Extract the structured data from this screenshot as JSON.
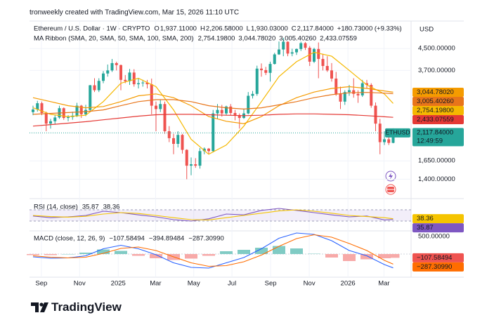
{
  "header": "tronweekly created with TradingView.com, Mar 15, 2026 11:10 UTC",
  "brand": "TradingView",
  "chart_data": [
    {
      "type": "candlestick",
      "title": "Ethereum / U.S. Dollar · 1W · CRYPTO",
      "ohlc_legend": [
        {
          "label": "O",
          "value": "1,937.11000"
        },
        {
          "label": "H",
          "value": "2,206.58000"
        },
        {
          "label": "L",
          "value": "1,930.03000"
        },
        {
          "label": "C",
          "value": "2,117.84000"
        }
      ],
      "change": "+180.73000 (+9.33%)",
      "currency": "USD",
      "symbol": "ETHUSD",
      "countdown": "12:49:59",
      "last_label": "2,117.84000",
      "up_color": "#26a69a",
      "down_color": "#ef5350",
      "log_scale": true,
      "grid": true,
      "ylim": [
        1200,
        5750
      ],
      "yticks": [
        {
          "value": 4500,
          "label": "4,500.00000"
        },
        {
          "value": 3700,
          "label": "3,700.00000"
        },
        {
          "value": 1650,
          "label": "1,650.00000"
        },
        {
          "value": 1400,
          "label": "1,400.00000"
        }
      ],
      "xticks": [
        {
          "value": 1.9,
          "label": "Sep"
        },
        {
          "value": 10.6,
          "label": "Nov"
        },
        {
          "value": 19.4,
          "label": "2025"
        },
        {
          "value": 27.9,
          "label": "Mar"
        },
        {
          "value": 36.6,
          "label": "May"
        },
        {
          "value": 45.3,
          "label": "Jul"
        },
        {
          "value": 54.1,
          "label": "Sep"
        },
        {
          "value": 62.9,
          "label": "Nov"
        },
        {
          "value": 71.7,
          "label": "2026"
        },
        {
          "value": 79.9,
          "label": "Mar"
        }
      ],
      "open": [
        2550,
        2610,
        2760,
        2530,
        2300,
        2350,
        2430,
        2640,
        2420,
        2440,
        2470,
        2700,
        2500,
        2600,
        3240,
        3100,
        3370,
        3600,
        3700,
        3950,
        3880,
        3400,
        3360,
        3630,
        3270,
        3300,
        3320,
        3270,
        2700,
        2620,
        2740,
        2150,
        2020,
        1920,
        2080,
        1820,
        1580,
        1600,
        1580,
        1800,
        1840,
        1800,
        2520,
        2600,
        2520,
        2680,
        2530,
        2480,
        2420,
        2520,
        2950,
        3000,
        3760,
        3710,
        3620,
        3920,
        4270,
        4460,
        4780,
        4300,
        4350,
        4480,
        4720,
        4530,
        4000,
        4480,
        4100,
        3850,
        3700,
        3440,
        3000,
        2800,
        3050,
        3100,
        3000,
        2960,
        3300,
        3250,
        2700,
        2300,
        1950,
        2000,
        1937.11
      ],
      "high": [
        2700,
        2820,
        2800,
        2560,
        2400,
        2480,
        2700,
        2660,
        2480,
        2560,
        2770,
        2720,
        2720,
        3250,
        3450,
        3450,
        3680,
        3900,
        4100,
        4000,
        3900,
        3550,
        3750,
        3740,
        3450,
        3400,
        3400,
        3440,
        2800,
        2850,
        2800,
        2250,
        2100,
        2150,
        2100,
        1830,
        1700,
        1690,
        1850,
        1860,
        1850,
        2600,
        2740,
        2720,
        2700,
        2740,
        2600,
        2520,
        2630,
        3050,
        3080,
        3860,
        3940,
        3820,
        4000,
        4330,
        4790,
        4950,
        4800,
        4490,
        4500,
        4780,
        4770,
        4600,
        4530,
        4750,
        4290,
        4200,
        3950,
        3650,
        3200,
        3100,
        3250,
        3450,
        3100,
        3400,
        3400,
        3300,
        2780,
        2400,
        2150,
        2100,
        2206.58
      ],
      "low": [
        2480,
        2560,
        2480,
        2150,
        2200,
        2280,
        2400,
        2380,
        2350,
        2380,
        2440,
        2420,
        2460,
        2560,
        3050,
        3050,
        3300,
        3500,
        3650,
        3700,
        3100,
        3300,
        3250,
        3200,
        3150,
        3200,
        3150,
        2500,
        2150,
        2550,
        2100,
        1950,
        1750,
        1860,
        1760,
        1400,
        1450,
        1550,
        1540,
        1750,
        1750,
        1780,
        2400,
        2450,
        2480,
        2480,
        2370,
        2200,
        2400,
        2500,
        2880,
        2950,
        3500,
        3550,
        3350,
        3900,
        4250,
        4200,
        4200,
        4200,
        4250,
        4400,
        4440,
        3850,
        3950,
        3450,
        3700,
        3650,
        3350,
        2950,
        2620,
        2720,
        2950,
        2900,
        2770,
        2920,
        3150,
        2650,
        2150,
        1750,
        1900,
        1900,
        1930.03
      ],
      "close": [
        2610,
        2760,
        2530,
        2300,
        2350,
        2430,
        2640,
        2420,
        2440,
        2470,
        2700,
        2500,
        2600,
        3240,
        3100,
        3370,
        3600,
        3700,
        3950,
        3880,
        3400,
        3360,
        3630,
        3270,
        3300,
        3320,
        3270,
        2700,
        2620,
        2740,
        2150,
        2020,
        1920,
        2080,
        1820,
        1580,
        1600,
        1580,
        1800,
        1840,
        1800,
        2520,
        2600,
        2520,
        2680,
        2530,
        2480,
        2420,
        2520,
        2950,
        3000,
        3760,
        3710,
        3620,
        3920,
        4270,
        4460,
        4780,
        4300,
        4350,
        4480,
        4720,
        4530,
        4000,
        4480,
        4100,
        3850,
        3700,
        3440,
        3000,
        2800,
        3050,
        3100,
        3000,
        2960,
        3300,
        3250,
        2700,
        2300,
        1950,
        2000,
        1937.11,
        2117.84
      ],
      "overlay": {
        "title": "MA Ribbon (SMA, 20, SMA, 50, SMA, 100, SMA, 200)",
        "series": [
          {
            "color": "#f5b800",
            "x": [
              0,
              4,
              8,
              12,
              16,
              20,
              24,
              28,
              32,
              36,
              40,
              44,
              48,
              52,
              56,
              60,
              64,
              68,
              72,
              76,
              80,
              82
            ],
            "values": [
              2650,
              2500,
              2450,
              2480,
              2800,
              3300,
              3450,
              3200,
              2600,
              2000,
              1750,
              1900,
              2250,
              2800,
              3500,
              4000,
              4350,
              4200,
              3700,
              3250,
              3000,
              2754.198
            ],
            "last_label": "2,754.19800"
          },
          {
            "color": "#f59b00",
            "x": [
              0,
              4,
              8,
              12,
              16,
              20,
              24,
              28,
              32,
              36,
              40,
              44,
              48,
              52,
              56,
              60,
              64,
              68,
              72,
              76,
              80,
              82
            ],
            "values": [
              2900,
              2800,
              2700,
              2650,
              2680,
              2800,
              2950,
              3000,
              2900,
              2700,
              2450,
              2350,
              2300,
              2450,
              2700,
              2900,
              3050,
              3150,
              3200,
              3150,
              3080,
              3044.7802
            ],
            "last_label": "3,044.78020"
          },
          {
            "color": "#e8751a",
            "x": [
              0,
              4,
              8,
              12,
              16,
              20,
              24,
              28,
              32,
              36,
              40,
              44,
              48,
              52,
              56,
              60,
              64,
              68,
              72,
              76,
              80,
              82
            ],
            "values": [
              2500,
              2520,
              2540,
              2560,
              2600,
              2700,
              2800,
              2850,
              2850,
              2800,
              2700,
              2650,
              2620,
              2650,
              2720,
              2800,
              2900,
              2980,
              3030,
              3040,
              3020,
              3005.4026
            ],
            "last_label": "3,005.40260"
          },
          {
            "color": "#e53935",
            "x": [
              0,
              4,
              8,
              12,
              16,
              20,
              24,
              28,
              32,
              36,
              40,
              44,
              48,
              52,
              56,
              60,
              64,
              68,
              72,
              76,
              80,
              82
            ],
            "values": [
              2250,
              2280,
              2310,
              2340,
              2380,
              2420,
              2460,
              2490,
              2500,
              2500,
              2490,
              2480,
              2470,
              2480,
              2500,
              2510,
              2510,
              2500,
              2490,
              2470,
              2445,
              2433.07559
            ],
            "last_label": "2,433.07559"
          }
        ]
      }
    },
    {
      "type": "line",
      "title": "RSI (14, close)",
      "ylim": [
        0,
        100
      ],
      "band": [
        30,
        70
      ],
      "band_color": "#7e57c2",
      "x": [
        0,
        4,
        8,
        12,
        16,
        20,
        24,
        28,
        32,
        36,
        40,
        44,
        48,
        52,
        56,
        60,
        64,
        68,
        72,
        76,
        80,
        82
      ],
      "series": [
        {
          "color": "#7e57c2",
          "values": [
            48,
            42,
            45,
            50,
            65,
            60,
            52,
            45,
            35,
            30,
            38,
            55,
            52,
            68,
            75,
            68,
            60,
            52,
            45,
            48,
            34,
            35.87
          ],
          "last_label": "35.87"
        },
        {
          "color": "#f5c400",
          "values": [
            50,
            46,
            44,
            47,
            55,
            60,
            57,
            50,
            42,
            35,
            34,
            42,
            50,
            58,
            66,
            70,
            65,
            58,
            50,
            46,
            42,
            38.36
          ],
          "last_label": "38.36"
        }
      ]
    },
    {
      "type": "macd",
      "title": "MACD (close, 12, 26, 9)",
      "ylim": [
        -600,
        600
      ],
      "yticks": [
        {
          "value": 500,
          "label": "500.00000"
        }
      ],
      "x": [
        0,
        4,
        8,
        12,
        16,
        20,
        24,
        28,
        32,
        36,
        40,
        44,
        48,
        52,
        56,
        60,
        64,
        68,
        72,
        76,
        80,
        82
      ],
      "histogram": {
        "up_color": "#80cbc4",
        "down_color": "#f7a9a8",
        "values": [
          -30,
          -30,
          0,
          40,
          130,
          90,
          -50,
          -120,
          -170,
          -130,
          -50,
          80,
          120,
          180,
          230,
          160,
          10,
          -100,
          -200,
          -150,
          -120,
          -107.58494
        ],
        "last_label": "−107.58494"
      },
      "series": [
        {
          "color": "#2962ff",
          "values": [
            -80,
            -120,
            -110,
            -50,
            150,
            250,
            150,
            -20,
            -250,
            -380,
            -400,
            -250,
            -100,
            150,
            450,
            600,
            560,
            380,
            100,
            -50,
            -300,
            -394.89484
          ],
          "last_label": "−394.89484"
        },
        {
          "color": "#ff6d00",
          "values": [
            -50,
            -90,
            -110,
            -90,
            20,
            160,
            200,
            100,
            -80,
            -250,
            -350,
            -330,
            -220,
            -30,
            220,
            440,
            550,
            480,
            300,
            100,
            -180,
            -287.3099
          ],
          "last_label": "−287.30990"
        }
      ]
    }
  ]
}
